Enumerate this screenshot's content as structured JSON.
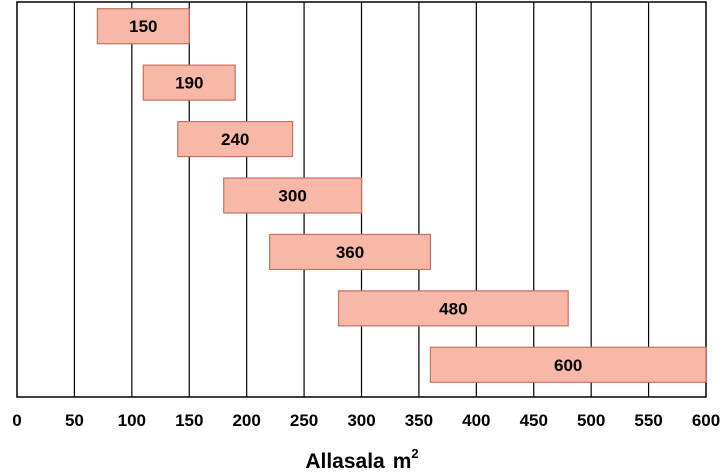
{
  "chart_data": {
    "type": "bar",
    "orientation": "horizontal-range",
    "xlabel": "Allasala",
    "xlabel_unit_base": "m",
    "xlabel_unit_exp": "2",
    "xlim": [
      0,
      600
    ],
    "xticks": [
      "0",
      "50",
      "100",
      "150",
      "200",
      "250",
      "300",
      "350",
      "400",
      "450",
      "500",
      "550",
      "600"
    ],
    "grid": true,
    "bars": [
      {
        "label": "150",
        "start": 70,
        "end": 150
      },
      {
        "label": "190",
        "start": 110,
        "end": 190
      },
      {
        "label": "240",
        "start": 140,
        "end": 240
      },
      {
        "label": "300",
        "start": 180,
        "end": 300
      },
      {
        "label": "360",
        "start": 220,
        "end": 360
      },
      {
        "label": "480",
        "start": 280,
        "end": 480
      },
      {
        "label": "600",
        "start": 360,
        "end": 600
      }
    ],
    "colors": {
      "bar_fill": "#f8b8a8",
      "bar_stroke": "#c87060",
      "grid": "#000000"
    }
  }
}
